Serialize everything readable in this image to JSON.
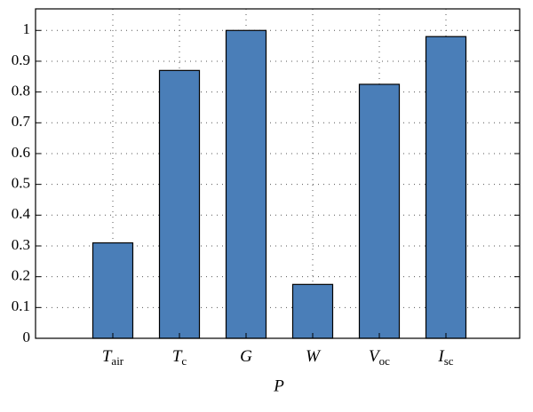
{
  "chart_data": {
    "type": "bar",
    "x_label": "P",
    "categories": [
      "T",
      "T",
      "G",
      "W",
      "V",
      "I"
    ],
    "category_subscripts": [
      "air",
      "c",
      null,
      null,
      "oc",
      "sc"
    ],
    "values": [
      0.31,
      0.87,
      1.0,
      0.175,
      0.825,
      0.98
    ],
    "color": "#4a7eb8",
    "ylim": [
      0,
      1.07
    ],
    "yticks": [
      0,
      0.1,
      0.2,
      0.3,
      0.4,
      0.5,
      0.6,
      0.7,
      0.8,
      0.9,
      1
    ],
    "grid": true
  }
}
